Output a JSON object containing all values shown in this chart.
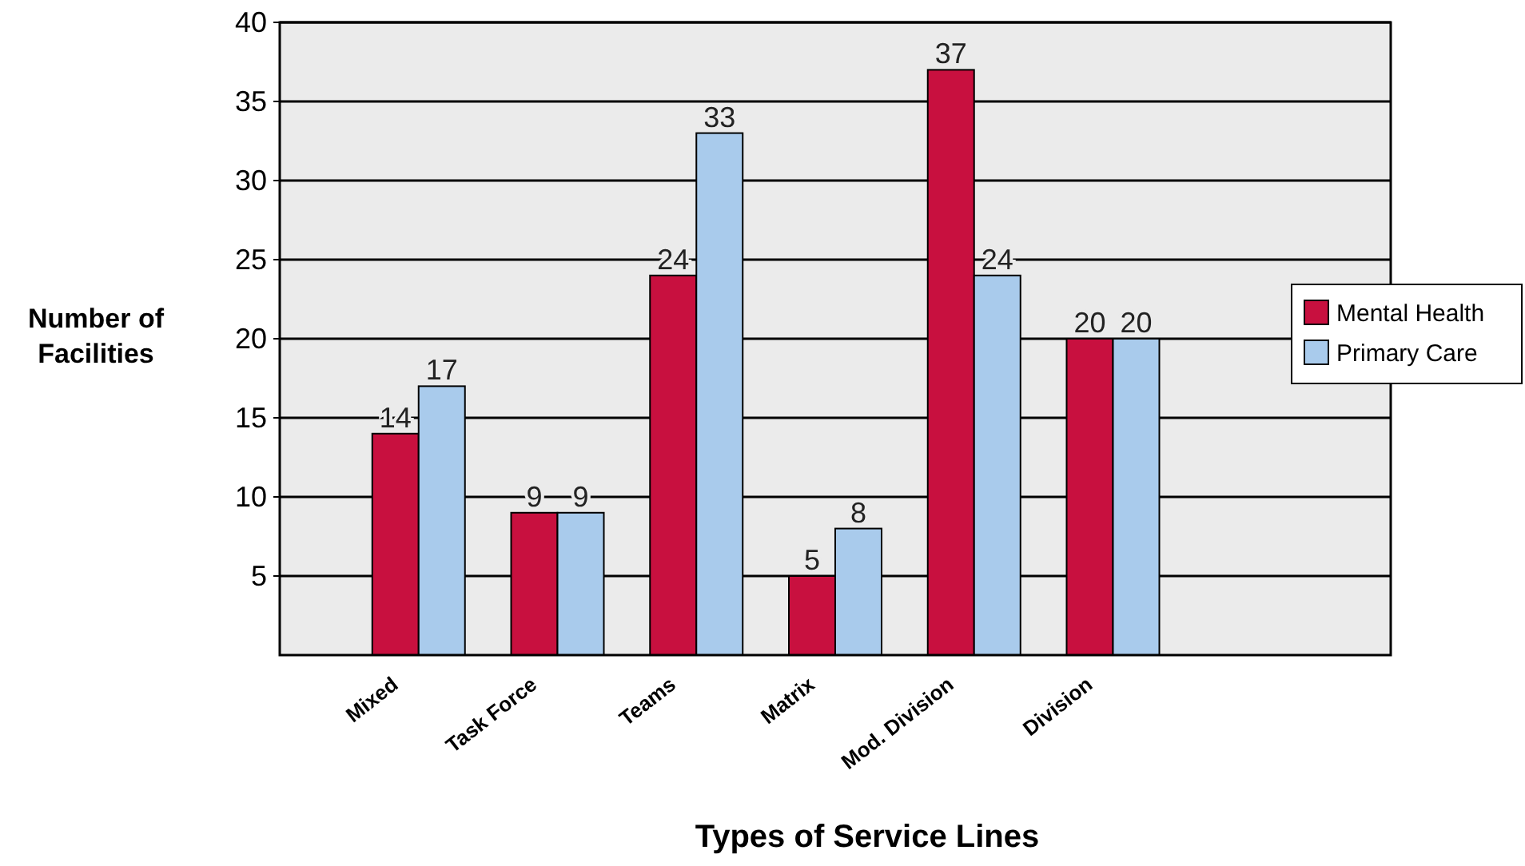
{
  "chart_data": {
    "type": "bar",
    "xlabel": "Types of Service Lines",
    "ylabel": "Number of\nFacilities",
    "categories": [
      "Mixed",
      "Task Force",
      "Teams",
      "Matrix",
      "Mod.  Division",
      "Division"
    ],
    "series": [
      {
        "name": "Mental Health",
        "color": "#c8103f",
        "values": [
          14,
          9,
          24,
          5,
          37,
          20
        ]
      },
      {
        "name": "Primary Care",
        "color": "#a9cbec",
        "values": [
          17,
          9,
          33,
          8,
          24,
          20
        ]
      }
    ],
    "ylim": [
      0,
      40
    ],
    "yticks": [
      5,
      10,
      15,
      20,
      25,
      30,
      35,
      40
    ],
    "grid": "y",
    "legend": "right",
    "data_labels": true
  }
}
